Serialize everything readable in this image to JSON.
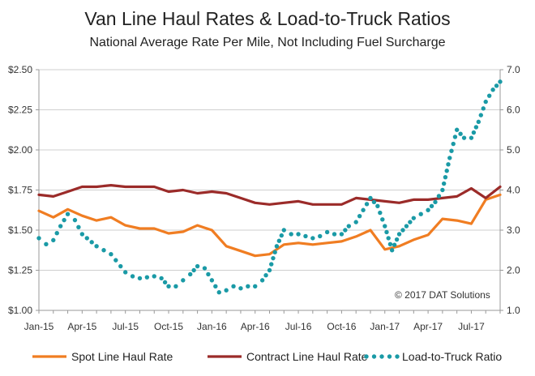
{
  "chart_data": {
    "type": "line",
    "title": "Van Line Haul Rates & Load-to-Truck Ratios",
    "subtitle": "National Average Rate Per Mile, Not Including Fuel Surcharge",
    "annotation": "© 2017 DAT Solutions",
    "x_tick_labels": [
      "Jan-15",
      "Apr-15",
      "Jul-15",
      "Oct-15",
      "Jan-16",
      "Apr-16",
      "Jul-16",
      "Oct-16",
      "Jan-17",
      "Apr-17",
      "Jul-17"
    ],
    "x_tick_month_index": [
      0,
      3,
      6,
      9,
      12,
      15,
      18,
      21,
      24,
      27,
      30
    ],
    "x_range": [
      0,
      32
    ],
    "y_left": {
      "ticks": [
        "$1.00",
        "$1.25",
        "$1.50",
        "$1.75",
        "$2.00",
        "$2.25",
        "$2.50"
      ],
      "range": [
        1.0,
        2.5
      ]
    },
    "y_right": {
      "ticks": [
        "1.0",
        "2.0",
        "3.0",
        "4.0",
        "5.0",
        "6.0",
        "7.0"
      ],
      "range": [
        1.0,
        7.0
      ]
    },
    "grid": "horizontal",
    "legend_position": "bottom",
    "colors": {
      "spot": "#f07d22",
      "contract": "#9b2b29",
      "ratio": "#1a9aa6",
      "grid": "#cfcfcf",
      "axis": "#999999"
    },
    "series": [
      {
        "name": "Spot Line Haul Rate",
        "axis": "left",
        "style": "solid",
        "x": [
          0,
          1,
          2,
          3,
          4,
          5,
          6,
          7,
          8,
          9,
          10,
          11,
          12,
          13,
          14,
          15,
          16,
          17,
          18,
          19,
          20,
          21,
          22,
          23,
          24,
          25,
          26,
          27,
          28,
          29,
          30,
          31,
          32
        ],
        "values": [
          1.62,
          1.58,
          1.63,
          1.59,
          1.56,
          1.58,
          1.53,
          1.51,
          1.51,
          1.48,
          1.49,
          1.53,
          1.5,
          1.4,
          1.37,
          1.34,
          1.35,
          1.41,
          1.42,
          1.41,
          1.42,
          1.43,
          1.46,
          1.5,
          1.38,
          1.4,
          1.44,
          1.47,
          1.57,
          1.56,
          1.54,
          1.69,
          1.72
        ]
      },
      {
        "name": "Contract Line Haul Rate",
        "axis": "left",
        "style": "solid",
        "x": [
          0,
          1,
          2,
          3,
          4,
          5,
          6,
          7,
          8,
          9,
          10,
          11,
          12,
          13,
          14,
          15,
          16,
          17,
          18,
          19,
          20,
          21,
          22,
          23,
          24,
          25,
          26,
          27,
          28,
          29,
          30,
          31,
          32
        ],
        "values": [
          1.72,
          1.71,
          1.74,
          1.77,
          1.77,
          1.78,
          1.77,
          1.77,
          1.77,
          1.74,
          1.75,
          1.73,
          1.74,
          1.73,
          1.7,
          1.67,
          1.66,
          1.67,
          1.68,
          1.66,
          1.66,
          1.66,
          1.7,
          1.69,
          1.68,
          1.67,
          1.69,
          1.69,
          1.7,
          1.71,
          1.76,
          1.7,
          1.77
        ]
      },
      {
        "name": "Load-to-Truck Ratio",
        "axis": "right",
        "style": "dotted",
        "x": [
          0,
          0.5,
          1,
          1.5,
          2,
          2.5,
          3,
          4,
          5,
          6,
          6.5,
          7,
          8,
          8.5,
          9,
          9.5,
          10,
          10.5,
          11,
          11.5,
          12,
          12.5,
          13,
          13.5,
          14,
          14.5,
          15,
          15.5,
          16,
          16.5,
          17,
          17.5,
          18,
          18.5,
          19,
          19.5,
          20,
          20.5,
          21,
          21.5,
          22,
          22.5,
          23,
          23.5,
          24,
          24.5,
          25,
          25.5,
          26,
          26.5,
          27,
          27.5,
          28,
          28.5,
          29,
          29.5,
          30,
          30.5,
          31,
          31.5,
          32
        ],
        "values": [
          2.8,
          2.65,
          2.75,
          3.1,
          3.4,
          3.25,
          2.9,
          2.6,
          2.4,
          1.95,
          1.85,
          1.8,
          1.85,
          1.8,
          1.6,
          1.6,
          1.75,
          1.9,
          2.1,
          2.05,
          1.75,
          1.45,
          1.5,
          1.6,
          1.55,
          1.6,
          1.6,
          1.75,
          2.0,
          2.6,
          3.0,
          2.9,
          2.9,
          2.85,
          2.8,
          2.85,
          2.95,
          2.9,
          2.9,
          3.1,
          3.2,
          3.5,
          3.8,
          3.6,
          3.1,
          2.5,
          2.9,
          3.1,
          3.3,
          3.4,
          3.5,
          3.7,
          4.0,
          4.8,
          5.5,
          5.3,
          5.3,
          5.7,
          6.2,
          6.5,
          6.7
        ]
      }
    ]
  }
}
